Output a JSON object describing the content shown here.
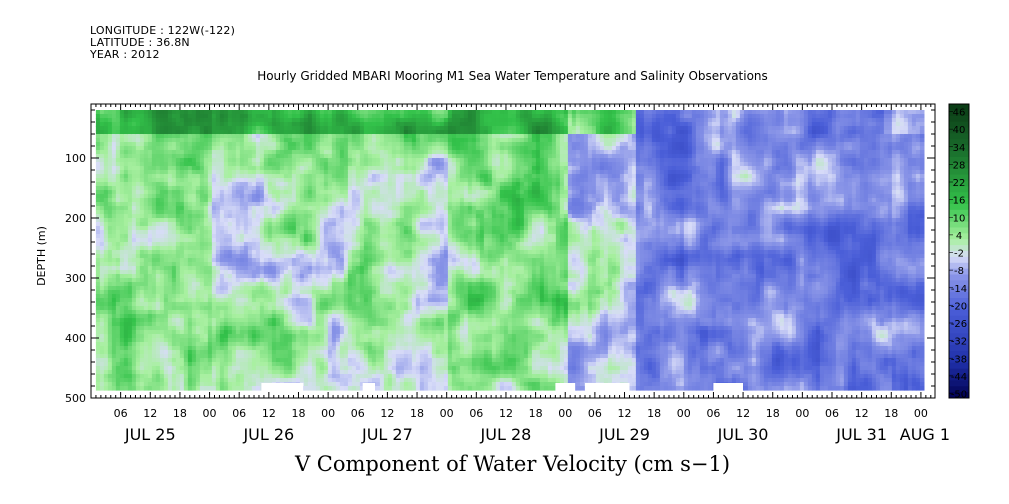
{
  "header": {
    "longitude": "LONGITUDE : 122W(-122)",
    "latitude": "LATITUDE : 36.8N",
    "year": "YEAR : 2012"
  },
  "chart_data": {
    "type": "heatmap",
    "title": "Hourly Gridded MBARI Mooring M1 Sea Water Temperature and Salinity Observations",
    "bottom_title": "V Component of Water Velocity (cm s−1)",
    "ylabel": "DEPTH (m)",
    "y_ticks": [
      "100",
      "200",
      "300",
      "400",
      "500"
    ],
    "y_tick_values": [
      100,
      200,
      300,
      400,
      500
    ],
    "ylim": [
      500,
      10
    ],
    "x_hour_labels": [
      "06",
      "12",
      "18",
      "00",
      "06",
      "12",
      "18",
      "00",
      "06",
      "12",
      "18",
      "00",
      "06",
      "12",
      "18",
      "00",
      "06",
      "12",
      "18",
      "00",
      "06",
      "12",
      "18",
      "00",
      "06",
      "12",
      "18",
      "00",
      "06",
      "12",
      "18",
      "00"
    ],
    "x_date_labels": [
      "JUL 25",
      "JUL 26",
      "JUL 27",
      "JUL 28",
      "JUL 29",
      "JUL 30",
      "JUL 31",
      "AUG  1"
    ],
    "data_x_range": [
      "2012-07-25T01:00",
      "2012-08-01T00:00"
    ],
    "data_depth_range": [
      20,
      485
    ],
    "colorbar_labels": [
      "46",
      "40",
      "34",
      "28",
      "22",
      "16",
      "10",
      "4",
      "-2",
      "-8",
      "-14",
      "-20",
      "-26",
      "-32",
      "-38",
      "-44",
      "-50"
    ],
    "colorbar_range": [
      -50,
      50
    ],
    "grid": false,
    "legend_position": "right",
    "colors": {
      "strong_positive": "#1a6e2c",
      "positive": "#33c24a",
      "weak_positive": "#a8f0a0",
      "near_zero": "#d8dcf8",
      "negative": "#8c97e8",
      "strong_negative": "#1f2fa8",
      "extreme_negative": "#000050"
    }
  }
}
